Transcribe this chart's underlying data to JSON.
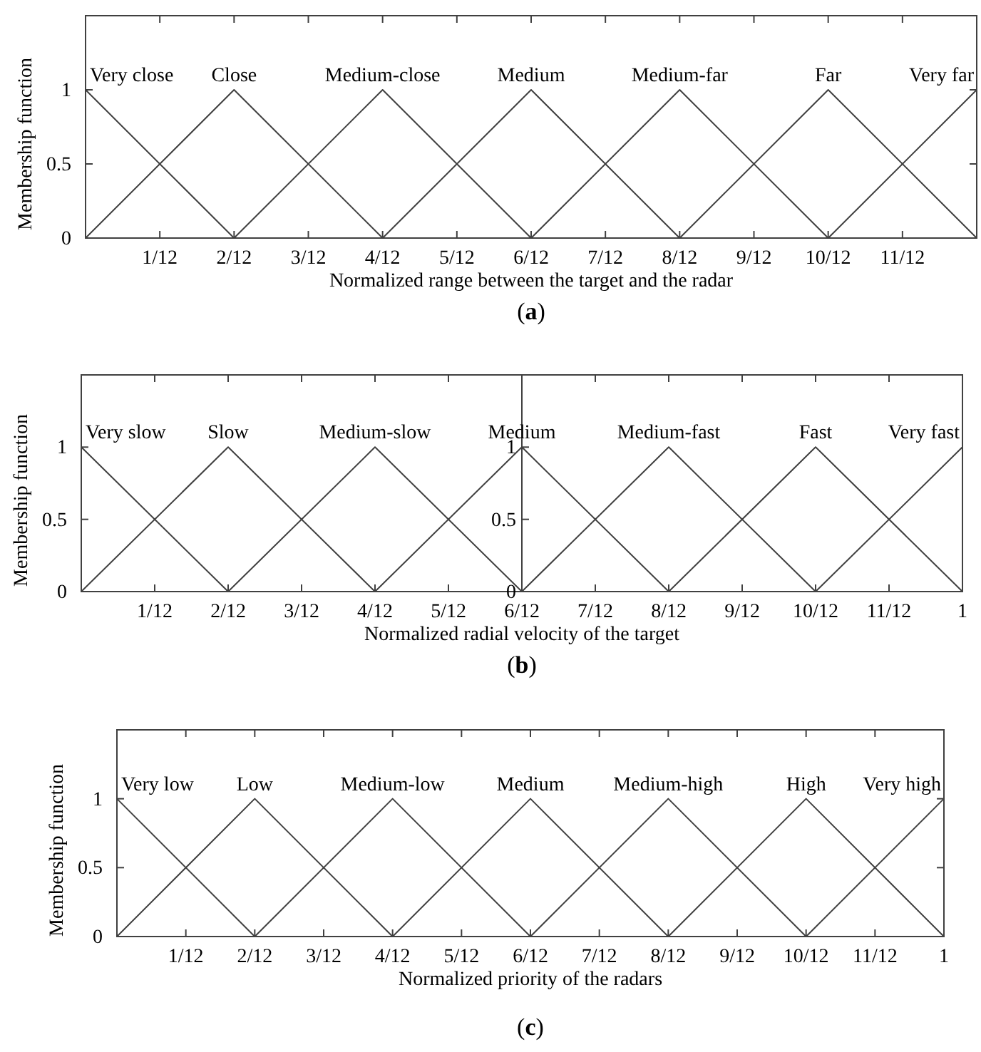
{
  "chart_data": [
    {
      "type": "line",
      "xlabel": "Normalized range between the target and the radar",
      "ylabel": "Membership function",
      "annotations": [
        "(a)"
      ],
      "xlim": [
        0,
        1
      ],
      "ylim": [
        0,
        1.5
      ],
      "yticks": [
        0,
        0.5,
        1
      ],
      "xticks": [
        {
          "value": 0.08333,
          "label": "1/12"
        },
        {
          "value": 0.16667,
          "label": "2/12"
        },
        {
          "value": 0.25,
          "label": "3/12"
        },
        {
          "value": 0.33333,
          "label": "4/12"
        },
        {
          "value": 0.41667,
          "label": "5/12"
        },
        {
          "value": 0.5,
          "label": "6/12"
        },
        {
          "value": 0.58333,
          "label": "7/12"
        },
        {
          "value": 0.66667,
          "label": "8/12"
        },
        {
          "value": 0.75,
          "label": "9/12"
        },
        {
          "value": 0.83333,
          "label": "10/12"
        },
        {
          "value": 0.91667,
          "label": "11/12"
        }
      ],
      "series": [
        {
          "name": "Very close",
          "color": "#404040",
          "x": [
            0,
            0.16667
          ],
          "values": [
            1,
            0
          ]
        },
        {
          "name": "Close",
          "color": "#404040",
          "x": [
            0,
            0.16667,
            0.33333
          ],
          "values": [
            0,
            1,
            0
          ]
        },
        {
          "name": "Medium-close",
          "color": "#404040",
          "x": [
            0.16667,
            0.33333,
            0.5
          ],
          "values": [
            0,
            1,
            0
          ]
        },
        {
          "name": "Medium",
          "color": "#404040",
          "x": [
            0.33333,
            0.5,
            0.66667
          ],
          "values": [
            0,
            1,
            0
          ]
        },
        {
          "name": "Medium-far",
          "color": "#404040",
          "x": [
            0.5,
            0.66667,
            0.83333
          ],
          "values": [
            0,
            1,
            0
          ]
        },
        {
          "name": "Far",
          "color": "#404040",
          "x": [
            0.66667,
            0.83333,
            1
          ],
          "values": [
            0,
            1,
            0
          ]
        },
        {
          "name": "Very far",
          "color": "#404040",
          "x": [
            0.83333,
            1
          ],
          "values": [
            0,
            1
          ]
        }
      ]
    },
    {
      "type": "line",
      "xlabel": "Normalized radial velocity of the target",
      "ylabel": "Membership function",
      "annotations": [
        "(b)"
      ],
      "xlim": [
        0,
        1
      ],
      "ylim": [
        0,
        1.5
      ],
      "yticks": [
        0,
        0.5,
        1
      ],
      "y2lim": [
        0,
        1.5
      ],
      "y2ticks": [
        0,
        0.5,
        1
      ],
      "xticks": [
        {
          "value": 0.08333,
          "label": "1/12"
        },
        {
          "value": 0.16667,
          "label": "2/12"
        },
        {
          "value": 0.25,
          "label": "3/12"
        },
        {
          "value": 0.33333,
          "label": "4/12"
        },
        {
          "value": 0.41667,
          "label": "5/12"
        },
        {
          "value": 0.5,
          "label": "6/12"
        },
        {
          "value": 0.58333,
          "label": "7/12"
        },
        {
          "value": 0.66667,
          "label": "8/12"
        },
        {
          "value": 0.75,
          "label": "9/12"
        },
        {
          "value": 0.83333,
          "label": "10/12"
        },
        {
          "value": 0.91667,
          "label": "11/12"
        },
        1
      ],
      "series": [
        {
          "name": "Very slow",
          "color": "#404040",
          "x": [
            0,
            0.16667
          ],
          "values": [
            1,
            0
          ]
        },
        {
          "name": "Slow",
          "color": "#404040",
          "x": [
            0,
            0.16667,
            0.33333
          ],
          "values": [
            0,
            1,
            0
          ]
        },
        {
          "name": "Medium-slow",
          "color": "#404040",
          "x": [
            0.16667,
            0.33333,
            0.5
          ],
          "values": [
            0,
            1,
            0
          ]
        },
        {
          "name": "Medium",
          "color": "#404040",
          "x": [
            0.33333,
            0.5,
            0.66667
          ],
          "values": [
            0,
            1,
            0
          ]
        },
        {
          "name": "Medium-fast",
          "color": "#404040",
          "x": [
            0.5,
            0.66667,
            0.83333
          ],
          "values": [
            0,
            1,
            0
          ]
        },
        {
          "name": "Fast",
          "color": "#404040",
          "x": [
            0.66667,
            0.83333,
            1
          ],
          "values": [
            0,
            1,
            0
          ]
        },
        {
          "name": "Very fast",
          "color": "#404040",
          "x": [
            0.83333,
            1
          ],
          "values": [
            0,
            1
          ]
        }
      ]
    },
    {
      "type": "line",
      "xlabel": "Normalized priority of the radars",
      "ylabel": "Membership function",
      "annotations": [
        "(c)"
      ],
      "xlim": [
        0,
        1
      ],
      "ylim": [
        0,
        1.5
      ],
      "yticks": [
        0,
        0.5,
        1
      ],
      "xticks": [
        {
          "value": 0.08333,
          "label": "1/12"
        },
        {
          "value": 0.16667,
          "label": "2/12"
        },
        {
          "value": 0.25,
          "label": "3/12"
        },
        {
          "value": 0.33333,
          "label": "4/12"
        },
        {
          "value": 0.41667,
          "label": "5/12"
        },
        {
          "value": 0.5,
          "label": "6/12"
        },
        {
          "value": 0.58333,
          "label": "7/12"
        },
        {
          "value": 0.66667,
          "label": "8/12"
        },
        {
          "value": 0.75,
          "label": "9/12"
        },
        {
          "value": 0.83333,
          "label": "10/12"
        },
        {
          "value": 0.91667,
          "label": "11/12"
        },
        1
      ],
      "series": [
        {
          "name": "Very low",
          "color": "#404040",
          "x": [
            0,
            0.16667
          ],
          "values": [
            1,
            0
          ]
        },
        {
          "name": "Low",
          "color": "#404040",
          "x": [
            0,
            0.16667,
            0.33333
          ],
          "values": [
            0,
            1,
            0
          ]
        },
        {
          "name": "Medium-low",
          "color": "#404040",
          "x": [
            0.16667,
            0.33333,
            0.5
          ],
          "values": [
            0,
            1,
            0
          ]
        },
        {
          "name": "Medium",
          "color": "#404040",
          "x": [
            0.33333,
            0.5,
            0.66667
          ],
          "values": [
            0,
            1,
            0
          ]
        },
        {
          "name": "Medium-high",
          "color": "#404040",
          "x": [
            0.5,
            0.66667,
            0.83333
          ],
          "values": [
            0,
            1,
            0
          ]
        },
        {
          "name": "High",
          "color": "#404040",
          "x": [
            0.66667,
            0.83333,
            1
          ],
          "values": [
            0,
            1,
            0
          ]
        },
        {
          "name": "Very high",
          "color": "#404040",
          "x": [
            0.83333,
            1
          ],
          "values": [
            0,
            1
          ]
        }
      ]
    }
  ]
}
